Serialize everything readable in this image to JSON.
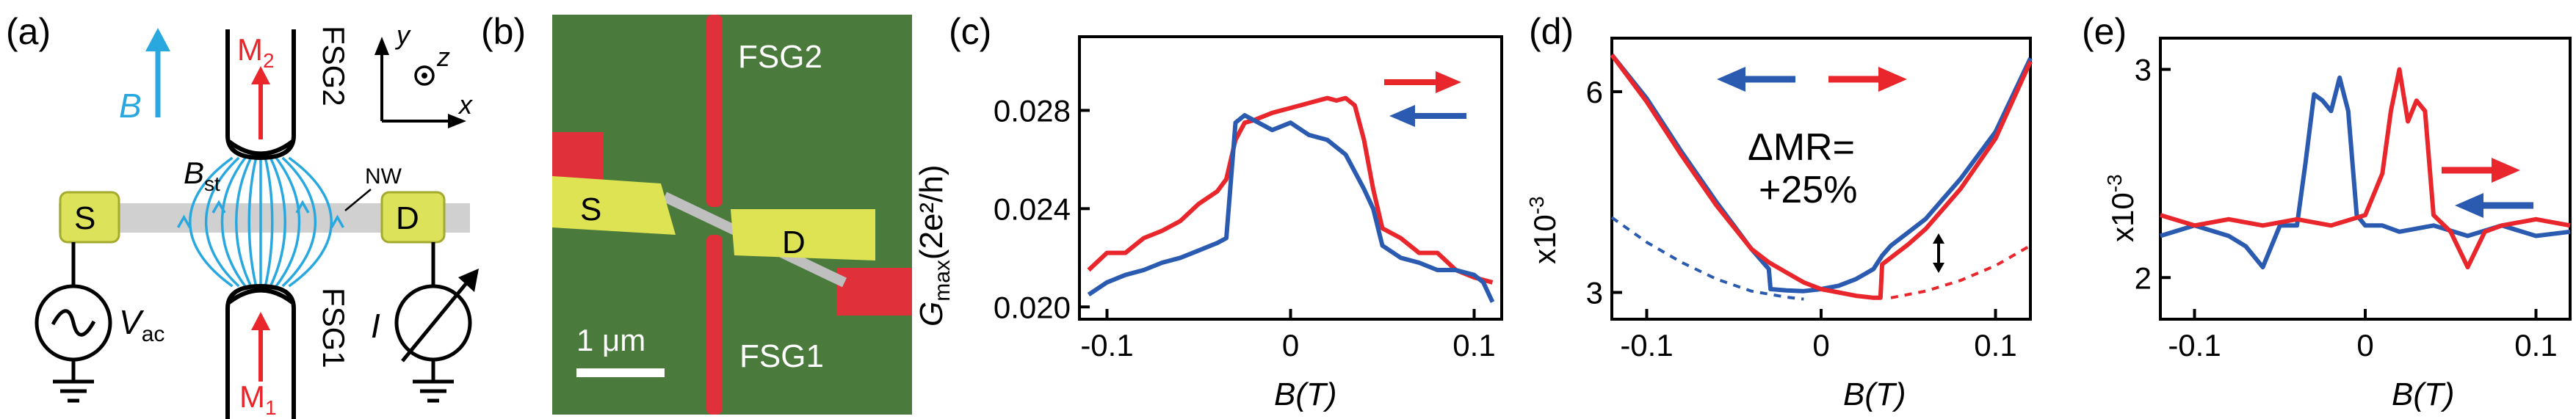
{
  "panel_labels": {
    "a": "(a)",
    "b": "(b)",
    "c": "(c)",
    "d": "(d)",
    "e": "(e)"
  },
  "colors": {
    "blue": "#2b5bb0",
    "red": "#e8262b",
    "lightblue": "#29a8e0",
    "yellow": "#dce35a",
    "green": "#4a7a3c",
    "rail": "#cfcfcf"
  },
  "schematic": {
    "s": "S",
    "d": "D",
    "fsg1": "FSG1",
    "fsg2": "FSG2",
    "m_prefix": "M",
    "m1_sub": "1",
    "m2_sub": "2",
    "b_field": "B",
    "bst": "B",
    "bst_sub": "st",
    "nw": "NW",
    "vac": "V",
    "vac_sub": "ac",
    "current": "I",
    "axis_x": "x",
    "axis_y": "y",
    "axis_z": "z"
  },
  "micrograph": {
    "fsg2": "FSG2",
    "fsg1": "FSG1",
    "s": "S",
    "d": "D",
    "scalebar": "1 μm"
  },
  "chart_data": [
    {
      "type": "line",
      "panel": "(c)",
      "xlabel": "B(T)",
      "ylabel": "G",
      "ylabel_sub": "max",
      "ylabel_unit": "(2e²/h)",
      "xlim": [
        -0.115,
        0.115
      ],
      "ylim": [
        0.0195,
        0.031
      ],
      "xticks": [
        -0.1,
        0,
        0.1
      ],
      "xtick_labels": [
        "-0.1",
        "0",
        "0.1"
      ],
      "yticks": [
        0.02,
        0.024,
        0.028
      ],
      "ytick_labels": [
        "0.020",
        "0.024",
        "0.028"
      ],
      "legend": "top-right arrows: red right, blue left",
      "series": [
        {
          "color": "red",
          "sweep": "right",
          "x": [
            -0.11,
            -0.1,
            -0.09,
            -0.08,
            -0.07,
            -0.06,
            -0.05,
            -0.04,
            -0.035,
            -0.03,
            -0.025,
            -0.02,
            -0.01,
            0,
            0.01,
            0.02,
            0.025,
            0.03,
            0.035,
            0.04,
            0.045,
            0.05,
            0.06,
            0.07,
            0.08,
            0.09,
            0.1,
            0.11
          ],
          "y": [
            0.0215,
            0.0222,
            0.0222,
            0.0228,
            0.0231,
            0.0235,
            0.0242,
            0.0247,
            0.0252,
            0.0268,
            0.0275,
            0.0276,
            0.0279,
            0.0281,
            0.0283,
            0.0285,
            0.0284,
            0.0285,
            0.0282,
            0.0268,
            0.0248,
            0.0232,
            0.0228,
            0.0222,
            0.0222,
            0.0215,
            0.0212,
            0.021
          ]
        },
        {
          "color": "blue",
          "sweep": "left",
          "x": [
            -0.11,
            -0.1,
            -0.09,
            -0.08,
            -0.07,
            -0.06,
            -0.05,
            -0.04,
            -0.035,
            -0.03,
            -0.025,
            -0.02,
            -0.01,
            0,
            0.01,
            0.02,
            0.03,
            0.035,
            0.04,
            0.045,
            0.05,
            0.06,
            0.07,
            0.08,
            0.09,
            0.1,
            0.105,
            0.11
          ],
          "y": [
            0.0205,
            0.021,
            0.0213,
            0.0215,
            0.0218,
            0.022,
            0.0223,
            0.0226,
            0.0228,
            0.0275,
            0.0278,
            0.0276,
            0.0272,
            0.0275,
            0.027,
            0.0268,
            0.0262,
            0.0255,
            0.0248,
            0.024,
            0.0225,
            0.022,
            0.0218,
            0.0215,
            0.0215,
            0.0213,
            0.021,
            0.0202
          ]
        }
      ]
    },
    {
      "type": "line",
      "panel": "(d)",
      "xlabel": "B(T)",
      "ylabel": "x10",
      "ylabel_exp": "-3",
      "xlim": [
        -0.12,
        0.12
      ],
      "ylim": [
        2.6,
        6.8
      ],
      "xticks": [
        -0.1,
        0,
        0.1
      ],
      "xtick_labels": [
        "-0.1",
        "0",
        "0.1"
      ],
      "yticks": [
        3,
        6
      ],
      "ytick_labels": [
        "3",
        "6"
      ],
      "annotation_line1": "ΔMR=",
      "annotation_line2": "+25%",
      "legend": "top: blue left arrow, red right arrow",
      "series": [
        {
          "color": "blue",
          "sweep": "left",
          "x": [
            -0.12,
            -0.1,
            -0.08,
            -0.06,
            -0.04,
            -0.03,
            -0.029,
            -0.02,
            -0.01,
            0,
            0.01,
            0.02,
            0.03,
            0.035,
            0.04,
            0.05,
            0.06,
            0.08,
            0.1,
            0.12
          ],
          "y": [
            6.55,
            5.9,
            5.1,
            4.35,
            3.65,
            3.35,
            3.05,
            3.03,
            3.02,
            3.05,
            3.1,
            3.2,
            3.35,
            3.55,
            3.7,
            3.9,
            4.1,
            4.7,
            5.4,
            6.5
          ]
        },
        {
          "color": "red",
          "sweep": "right",
          "x": [
            -0.12,
            -0.1,
            -0.08,
            -0.06,
            -0.04,
            -0.03,
            -0.02,
            -0.01,
            0,
            0.01,
            0.02,
            0.03,
            0.034,
            0.035,
            0.04,
            0.05,
            0.06,
            0.08,
            0.1,
            0.12
          ],
          "y": [
            6.55,
            5.85,
            5.05,
            4.3,
            3.65,
            3.45,
            3.3,
            3.15,
            3.05,
            3.0,
            2.95,
            2.92,
            2.92,
            3.42,
            3.52,
            3.72,
            3.95,
            4.55,
            5.3,
            6.45
          ]
        },
        {
          "color": "blue",
          "style": "dashed",
          "x": [
            -0.12,
            -0.1,
            -0.08,
            -0.06,
            -0.04,
            -0.02,
            -0.01
          ],
          "y": [
            4.12,
            3.75,
            3.45,
            3.2,
            3.02,
            2.93,
            2.9
          ]
        },
        {
          "color": "red",
          "style": "dashed",
          "x": [
            0.04,
            0.06,
            0.08,
            0.1,
            0.12
          ],
          "y": [
            2.92,
            3.02,
            3.18,
            3.4,
            3.7
          ]
        }
      ]
    },
    {
      "type": "line",
      "panel": "(e)",
      "xlabel": "B(T)",
      "ylabel": "x10",
      "ylabel_exp": "-3",
      "xlim": [
        -0.12,
        0.12
      ],
      "ylim": [
        1.8,
        3.15
      ],
      "xticks": [
        -0.1,
        0,
        0.1
      ],
      "xtick_labels": [
        "-0.1",
        "0",
        "0.1"
      ],
      "yticks": [
        2,
        3
      ],
      "ytick_labels": [
        "2",
        "3"
      ],
      "legend": "right: red right arrow, blue left arrow",
      "series": [
        {
          "color": "blue",
          "sweep": "left",
          "x": [
            -0.12,
            -0.1,
            -0.08,
            -0.07,
            -0.06,
            -0.05,
            -0.04,
            -0.035,
            -0.03,
            -0.025,
            -0.02,
            -0.015,
            -0.01,
            -0.005,
            0,
            0.01,
            0.02,
            0.04,
            0.06,
            0.08,
            0.1,
            0.12
          ],
          "y": [
            2.2,
            2.25,
            2.2,
            2.15,
            2.05,
            2.25,
            2.25,
            2.55,
            2.88,
            2.85,
            2.8,
            2.96,
            2.8,
            2.3,
            2.25,
            2.25,
            2.22,
            2.25,
            2.2,
            2.25,
            2.2,
            2.22
          ]
        },
        {
          "color": "red",
          "sweep": "right",
          "x": [
            -0.12,
            -0.1,
            -0.08,
            -0.06,
            -0.04,
            -0.02,
            0,
            0.01,
            0.015,
            0.02,
            0.025,
            0.03,
            0.035,
            0.04,
            0.05,
            0.06,
            0.07,
            0.08,
            0.1,
            0.12
          ],
          "y": [
            2.3,
            2.25,
            2.28,
            2.25,
            2.28,
            2.25,
            2.3,
            2.5,
            2.8,
            3.0,
            2.75,
            2.85,
            2.8,
            2.3,
            2.22,
            2.05,
            2.22,
            2.25,
            2.28,
            2.25
          ]
        }
      ]
    }
  ]
}
